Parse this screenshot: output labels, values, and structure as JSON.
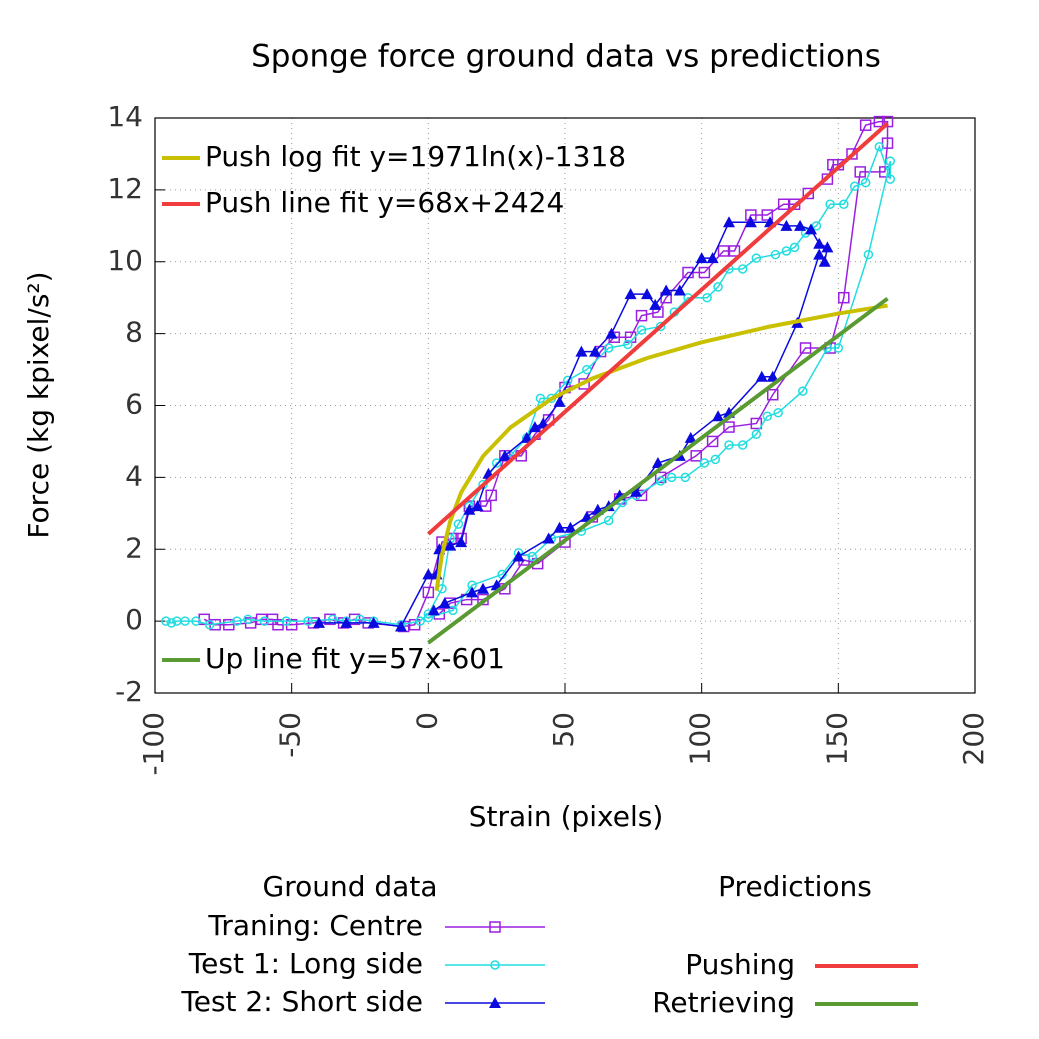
{
  "chart_data": {
    "type": "line",
    "title": "Sponge force ground data vs predictions",
    "x_label": "Strain (pixels)",
    "y_label": "Force (kg kpixel/s²)",
    "xlim": [
      -100,
      200
    ],
    "ylim": [
      -2,
      14
    ],
    "xticks": [
      -100,
      -50,
      0,
      50,
      100,
      150,
      200
    ],
    "yticks": [
      -2,
      0,
      2,
      4,
      6,
      8,
      10,
      12,
      14
    ],
    "grid": true,
    "ground_legend_title": "Ground data",
    "series": [
      {
        "name": "Traning: Centre",
        "color": "#9b1fe0",
        "marker": "square",
        "key": "ground",
        "x": [
          -82,
          -78,
          -73,
          -65,
          -61,
          -57,
          -55,
          -50,
          -42,
          -36,
          -31,
          -27,
          -22,
          -9,
          -5,
          0,
          5,
          9,
          12,
          15,
          21,
          23,
          28,
          34,
          39,
          44,
          50,
          57,
          63,
          68,
          74,
          78,
          84,
          87,
          95,
          101,
          108,
          112,
          118,
          124,
          130,
          134,
          139,
          146,
          148,
          150,
          155,
          160,
          165,
          168,
          168,
          167,
          158,
          152,
          147,
          138,
          126,
          120,
          110,
          104,
          98,
          85,
          78,
          70,
          60,
          50,
          40,
          35,
          28,
          20,
          14,
          8,
          4
        ],
        "values": [
          0.05,
          -0.1,
          -0.1,
          -0.05,
          0.05,
          0.05,
          -0.1,
          -0.1,
          -0.05,
          0.05,
          -0.05,
          0.05,
          -0.05,
          -0.15,
          -0.1,
          0.8,
          2.2,
          2.3,
          2.3,
          3.2,
          3.2,
          3.5,
          4.6,
          4.6,
          5.2,
          5.6,
          6.5,
          6.6,
          7.5,
          7.9,
          7.9,
          8.5,
          8.6,
          9.0,
          9.7,
          9.7,
          10.3,
          10.3,
          11.3,
          11.3,
          11.6,
          11.6,
          11.9,
          12.3,
          12.7,
          12.7,
          13.0,
          13.8,
          13.9,
          13.9,
          13.3,
          12.5,
          12.5,
          9.0,
          7.6,
          7.6,
          6.3,
          5.5,
          5.4,
          5.0,
          4.6,
          4.0,
          3.5,
          3.4,
          2.9,
          2.2,
          1.6,
          1.7,
          0.9,
          0.6,
          0.6,
          0.5,
          0.2
        ]
      },
      {
        "name": "Test 1: Long side",
        "color": "#22dde0",
        "marker": "circle",
        "key": "ground",
        "x": [
          -96,
          -94,
          -92,
          -89,
          -85,
          -80,
          -70,
          -66,
          -60,
          -52,
          -44,
          -35,
          -30,
          -25,
          -20,
          -10,
          -3,
          0,
          5,
          8,
          11,
          15,
          20,
          25,
          30,
          36,
          41,
          45,
          51,
          58,
          66,
          73,
          78,
          85,
          90,
          95,
          102,
          106,
          110,
          115,
          120,
          127,
          131,
          134,
          138,
          142,
          147,
          152,
          156,
          160,
          165,
          169,
          169,
          161,
          150,
          146,
          137,
          128,
          124,
          120,
          115,
          110,
          105,
          101,
          94,
          89,
          85,
          76,
          71,
          66,
          56,
          45,
          38,
          33,
          27,
          16,
          9,
          0
        ],
        "values": [
          0,
          -0.05,
          0,
          0,
          0,
          -0.1,
          0,
          0.05,
          0,
          0,
          0,
          0.05,
          0,
          0.05,
          0,
          -0.1,
          0,
          0.2,
          0.9,
          2.3,
          2.7,
          3.2,
          3.8,
          4.4,
          4.6,
          5.1,
          6.2,
          6.2,
          6.7,
          7.0,
          7.6,
          7.7,
          8.1,
          8.2,
          8.6,
          9.0,
          9.0,
          9.3,
          9.8,
          9.8,
          10.1,
          10.2,
          10.3,
          10.4,
          10.8,
          11.0,
          11.6,
          11.6,
          12.1,
          12.2,
          13.2,
          12.3,
          12.8,
          10.2,
          7.6,
          7.6,
          6.4,
          5.8,
          5.7,
          5.2,
          4.9,
          4.9,
          4.5,
          4.4,
          4.0,
          4.0,
          3.9,
          3.5,
          3.3,
          2.8,
          2.5,
          2.3,
          1.8,
          1.9,
          1.3,
          1.0,
          0.3,
          0.1
        ]
      },
      {
        "name": "Test 2: Short side",
        "color": "#0a0ae0",
        "marker": "triangle",
        "key": "ground",
        "x": [
          -40,
          -30,
          -20,
          -10,
          0,
          3,
          4,
          8,
          12,
          15,
          18,
          22,
          28,
          36,
          39,
          42,
          48,
          56,
          61,
          67,
          74,
          80,
          83,
          87,
          92,
          100,
          104,
          110,
          118,
          125,
          131,
          136,
          140,
          143,
          146,
          145,
          143,
          135,
          126,
          122,
          110,
          106,
          96,
          92,
          84,
          76,
          70,
          66,
          62,
          58,
          52,
          48,
          44,
          33,
          25,
          20,
          16,
          6,
          2
        ],
        "values": [
          -0.05,
          -0.05,
          -0.05,
          -0.15,
          1.3,
          1.3,
          2.0,
          2.1,
          2.2,
          3.1,
          3.2,
          4.1,
          4.6,
          5.1,
          5.4,
          5.5,
          6.1,
          7.5,
          7.5,
          8.0,
          9.1,
          9.1,
          8.8,
          9.2,
          9.2,
          10.1,
          10.1,
          11.1,
          11.1,
          11.1,
          11.0,
          11.0,
          10.9,
          10.5,
          10.4,
          10.0,
          10.2,
          8.3,
          6.8,
          6.8,
          5.8,
          5.7,
          5.1,
          4.6,
          4.4,
          3.6,
          3.5,
          3.2,
          3.1,
          2.9,
          2.6,
          2.6,
          2.3,
          1.8,
          1.0,
          0.9,
          0.8,
          0.5,
          0.3
        ]
      },
      {
        "name": "Push log fit y=1971ln(x)-1318",
        "color": "#c8c000",
        "marker": null,
        "key": "inside",
        "x": [
          3,
          5,
          8,
          12,
          20,
          30,
          45,
          60,
          80,
          100,
          125,
          150,
          168
        ],
        "values": [
          0.847,
          1.854,
          2.78,
          3.58,
          4.587,
          5.386,
          6.185,
          6.752,
          7.319,
          7.759,
          8.198,
          8.558,
          8.781
        ]
      },
      {
        "name": "Push line fit y=68x+2424",
        "color": "#f03c3c",
        "marker": null,
        "key": "inside",
        "x": [
          0,
          168
        ],
        "values": [
          2.424,
          13.848
        ]
      },
      {
        "name": "Up line fit y=57x-601",
        "color": "#5a9a32",
        "marker": null,
        "key": "inside",
        "x": [
          0,
          168
        ],
        "values": [
          -0.601,
          8.975
        ]
      }
    ],
    "prediction_legend": {
      "title": "Predictions",
      "entries": [
        {
          "name": "Pushing",
          "color": "#f03c3c"
        },
        {
          "name": "Retrieving",
          "color": "#5a9a32"
        }
      ]
    }
  }
}
